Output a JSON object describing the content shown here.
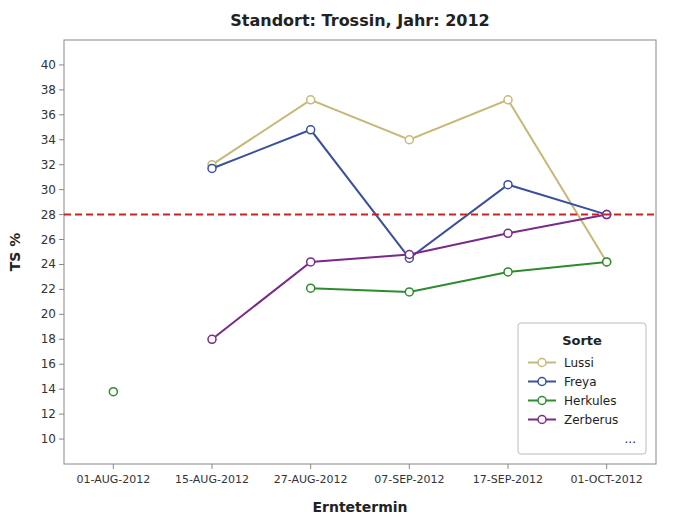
{
  "chart_data": {
    "type": "line",
    "title": "Standort: Trossin, Jahr: 2012",
    "xlabel": "Erntetermin",
    "ylabel": "TS %",
    "categories": [
      "01-AUG-2012",
      "15-AUG-2012",
      "27-AUG-2012",
      "07-SEP-2012",
      "17-SEP-2012",
      "01-OCT-2012"
    ],
    "series": [
      {
        "name": "Lussi",
        "color": "#c8b878",
        "marker": "circle",
        "values": [
          null,
          32.0,
          37.2,
          34.0,
          37.2,
          24.2
        ]
      },
      {
        "name": "Freya",
        "color": "#3a4f9e",
        "marker": "circle",
        "values": [
          null,
          31.7,
          34.8,
          24.5,
          30.4,
          28.0
        ]
      },
      {
        "name": "Herkules",
        "color": "#2e8b2e",
        "marker": "circle",
        "values": [
          13.8,
          null,
          22.1,
          21.8,
          23.4,
          24.2
        ]
      },
      {
        "name": "Zerberus",
        "color": "#7b2a8a",
        "marker": "circle",
        "values": [
          null,
          18.0,
          24.2,
          24.8,
          26.5,
          28.0
        ]
      }
    ],
    "reference_lines": [
      {
        "value": 28.0,
        "color": "#cc2222",
        "line_style": "dashed"
      }
    ],
    "ylim": [
      8,
      42
    ],
    "yticks": [
      10,
      12,
      14,
      16,
      18,
      20,
      22,
      24,
      26,
      28,
      30,
      32,
      34,
      36,
      38,
      40
    ],
    "grid": false,
    "legend": "lower right",
    "legend_title": "Sorte",
    "annotations": [
      "..."
    ]
  }
}
